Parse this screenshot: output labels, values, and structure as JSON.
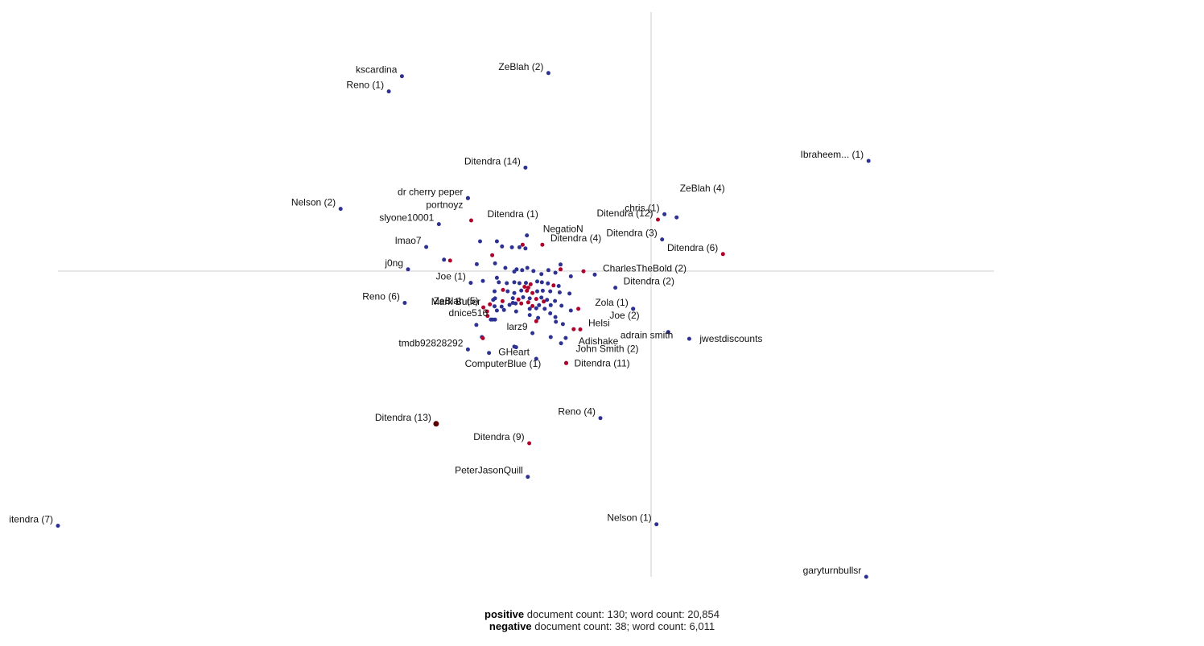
{
  "chart_data": {
    "type": "scatter",
    "title": "",
    "xlabel": "",
    "ylabel": "",
    "grid": false,
    "xlim": [
      -1,
      1
    ],
    "ylim": [
      -1,
      1
    ],
    "series_colors": {
      "positive": "#2e3192",
      "negative": "#b1002b",
      "highlight": "#5a0000"
    },
    "labeled_points": [
      {
        "label": "kscardina",
        "x": -0.265,
        "y": 0.773,
        "class": "positive",
        "anchor": "end"
      },
      {
        "label": "Reno (1)",
        "x": -0.293,
        "y": 0.719,
        "class": "positive",
        "anchor": "end"
      },
      {
        "label": "ZeBlah (2)",
        "x": 0.048,
        "y": 0.784,
        "class": "positive",
        "anchor": "end"
      },
      {
        "label": "Ibraheem... (1)",
        "x": 0.732,
        "y": 0.473,
        "class": "positive",
        "anchor": "end"
      },
      {
        "label": "Ditendra (14)",
        "x": -0.001,
        "y": 0.449,
        "class": "positive",
        "anchor": "end"
      },
      {
        "label": "dr cherry peper",
        "x": -0.124,
        "y": 0.341,
        "class": "positive",
        "anchor": "end"
      },
      {
        "label": "portnoyz",
        "x": -0.124,
        "y": 0.341,
        "class": "positive",
        "anchor": "end",
        "dy": 16
      },
      {
        "label": "Nelson (2)",
        "x": -0.396,
        "y": 0.303,
        "class": "positive",
        "anchor": "end"
      },
      {
        "label": "slyone10001",
        "x": -0.186,
        "y": 0.249,
        "class": "positive",
        "anchor": "end"
      },
      {
        "label": "Ditendra (1)",
        "x": -0.117,
        "y": 0.262,
        "class": "negative",
        "anchor": "start",
        "dx": 14
      },
      {
        "label": "NegatioN",
        "x": 0.002,
        "y": 0.209,
        "class": "positive",
        "anchor": "start",
        "dx": 14
      },
      {
        "label": "Ditendra (4)",
        "x": 0.035,
        "y": 0.176,
        "class": "negative",
        "anchor": "start",
        "dx": 4
      },
      {
        "label": "chris (1)",
        "x": 0.296,
        "y": 0.284,
        "class": "positive",
        "anchor": "end"
      },
      {
        "label": "ZeBlah (4)",
        "x": 0.322,
        "y": 0.273,
        "class": "positive",
        "anchor": "start",
        "dx": -2,
        "dy": -28
      },
      {
        "label": "Ditendra (12)",
        "x": 0.282,
        "y": 0.265,
        "class": "negative",
        "anchor": "end"
      },
      {
        "label": "Ditendra (3)",
        "x": 0.291,
        "y": 0.195,
        "class": "positive",
        "anchor": "end"
      },
      {
        "label": "Ditendra (6)",
        "x": 0.421,
        "y": 0.143,
        "class": "negative",
        "anchor": "end"
      },
      {
        "label": "lmao7",
        "x": -0.213,
        "y": 0.168,
        "class": "positive",
        "anchor": "end"
      },
      {
        "label": "j0ng",
        "x": -0.252,
        "y": 0.089,
        "class": "positive",
        "anchor": "end"
      },
      {
        "label": "CharlesTheBold (2)",
        "x": 0.147,
        "y": 0.07,
        "class": "positive",
        "anchor": "start",
        "dx": 4
      },
      {
        "label": "Joe (1)",
        "x": -0.118,
        "y": 0.041,
        "class": "positive",
        "anchor": "end"
      },
      {
        "label": "Ditendra (2)",
        "x": 0.191,
        "y": 0.024,
        "class": "positive",
        "anchor": "start",
        "dx": 4
      },
      {
        "label": "Reno (6)",
        "x": -0.259,
        "y": -0.03,
        "class": "positive",
        "anchor": "end"
      },
      {
        "label": "Mark Butler",
        "x": -0.066,
        "y": -0.014,
        "class": "positive",
        "anchor": "end",
        "dx": -12,
        "dy": 12
      },
      {
        "label": "ZeBlah (5)",
        "x": -0.091,
        "y": -0.046,
        "class": "negative",
        "anchor": "end"
      },
      {
        "label": "Zola (1)",
        "x": 0.229,
        "y": -0.051,
        "class": "positive",
        "anchor": "end"
      },
      {
        "label": "Joe (2)",
        "x": 0.229,
        "y": -0.051,
        "class": "positive",
        "anchor": "end",
        "dx": 14,
        "dy": 16
      },
      {
        "label": "dnice516",
        "x": -0.071,
        "y": -0.089,
        "class": "positive",
        "anchor": "end"
      },
      {
        "label": "Helsi",
        "x": 0.116,
        "y": -0.124,
        "class": "negative",
        "anchor": "start",
        "dx": 4
      },
      {
        "label": "larz9",
        "x": 0.014,
        "y": -0.137,
        "class": "positive",
        "anchor": "end"
      },
      {
        "label": "Adishake",
        "x": 0.085,
        "y": -0.154,
        "class": "positive",
        "anchor": "start",
        "dx": 10,
        "dy": 12
      },
      {
        "label": "adrain smith",
        "x": 0.304,
        "y": -0.133,
        "class": "positive",
        "anchor": "end",
        "dx": 12,
        "dy": 12
      },
      {
        "label": "jwestdiscounts",
        "x": 0.349,
        "y": -0.157,
        "class": "positive",
        "anchor": "start",
        "dx": 7,
        "dy": 8
      },
      {
        "label": "tmdb92828292",
        "x": -0.124,
        "y": -0.195,
        "class": "positive",
        "anchor": "end"
      },
      {
        "label": "GHeart",
        "x": -0.021,
        "y": -0.187,
        "class": "positive",
        "anchor": "start",
        "dx": -28,
        "dy": 14
      },
      {
        "label": "John Smith (2)",
        "x": 0.086,
        "y": -0.243,
        "class": "negative",
        "anchor": "start",
        "dx": 6,
        "dy": -10
      },
      {
        "label": "ComputerBlue (1)",
        "x": 0.022,
        "y": -0.228,
        "class": "positive",
        "anchor": "end",
        "dx": 12,
        "dy": 14
      },
      {
        "label": "Ditendra (11)",
        "x": 0.086,
        "y": -0.243,
        "class": "negative",
        "anchor": "start",
        "dx": 4,
        "dy": 8
      },
      {
        "label": "Ditendra (13)",
        "x": -0.192,
        "y": -0.458,
        "class": "highlight",
        "anchor": "end",
        "r": 3.5
      },
      {
        "label": "Reno (4)",
        "x": 0.159,
        "y": -0.438,
        "class": "positive",
        "anchor": "end"
      },
      {
        "label": "Ditendra (9)",
        "x": 0.007,
        "y": -0.527,
        "class": "negative",
        "anchor": "end"
      },
      {
        "label": "PeterJasonQuill",
        "x": 0.004,
        "y": -0.646,
        "class": "positive",
        "anchor": "end"
      },
      {
        "label": "itendra (7)",
        "x": -1.0,
        "y": -0.819,
        "class": "positive",
        "anchor": "end"
      },
      {
        "label": "Nelson (1)",
        "x": 0.279,
        "y": -0.814,
        "class": "positive",
        "anchor": "end"
      },
      {
        "label": "garyturnbullsr",
        "x": 0.727,
        "y": -1.0,
        "class": "positive",
        "anchor": "end"
      }
    ],
    "unlabeled_points": [
      {
        "x": -0.162,
        "y": 0.12,
        "class": "negative"
      },
      {
        "x": -0.175,
        "y": 0.123,
        "class": "positive"
      },
      {
        "x": -0.105,
        "y": 0.107,
        "class": "positive"
      },
      {
        "x": -0.066,
        "y": 0.11,
        "class": "positive"
      },
      {
        "x": -0.072,
        "y": 0.139,
        "class": "negative"
      },
      {
        "x": -0.062,
        "y": 0.188,
        "class": "positive"
      },
      {
        "x": -0.051,
        "y": 0.17,
        "class": "positive"
      },
      {
        "x": -0.03,
        "y": 0.167,
        "class": "positive"
      },
      {
        "x": -0.014,
        "y": 0.167,
        "class": "positive"
      },
      {
        "x": -0.007,
        "y": 0.176,
        "class": "negative"
      },
      {
        "x": -0.001,
        "y": 0.163,
        "class": "positive"
      },
      {
        "x": -0.098,
        "y": 0.188,
        "class": "positive"
      },
      {
        "x": -0.062,
        "y": 0.059,
        "class": "positive"
      },
      {
        "x": -0.044,
        "y": 0.094,
        "class": "positive"
      },
      {
        "x": -0.025,
        "y": 0.081,
        "class": "positive"
      },
      {
        "x": -0.02,
        "y": 0.089,
        "class": "positive"
      },
      {
        "x": -0.008,
        "y": 0.086,
        "class": "positive"
      },
      {
        "x": 0.003,
        "y": 0.094,
        "class": "positive"
      },
      {
        "x": 0.016,
        "y": 0.083,
        "class": "positive"
      },
      {
        "x": 0.033,
        "y": 0.072,
        "class": "positive"
      },
      {
        "x": 0.048,
        "y": 0.086,
        "class": "positive"
      },
      {
        "x": 0.063,
        "y": 0.077,
        "class": "positive"
      },
      {
        "x": 0.074,
        "y": 0.089,
        "class": "negative"
      },
      {
        "x": 0.074,
        "y": 0.106,
        "class": "positive"
      },
      {
        "x": 0.096,
        "y": 0.064,
        "class": "positive"
      },
      {
        "x": 0.123,
        "y": 0.082,
        "class": "negative"
      },
      {
        "x": -0.092,
        "y": 0.048,
        "class": "positive"
      },
      {
        "x": -0.058,
        "y": 0.043,
        "class": "positive"
      },
      {
        "x": -0.041,
        "y": 0.04,
        "class": "positive"
      },
      {
        "x": -0.025,
        "y": 0.043,
        "class": "positive"
      },
      {
        "x": -0.014,
        "y": 0.04,
        "class": "positive"
      },
      {
        "x": 0.0,
        "y": 0.041,
        "class": "positive"
      },
      {
        "x": 0.01,
        "y": 0.036,
        "class": "negative"
      },
      {
        "x": 0.024,
        "y": 0.046,
        "class": "positive"
      },
      {
        "x": 0.034,
        "y": 0.043,
        "class": "positive"
      },
      {
        "x": 0.047,
        "y": 0.039,
        "class": "positive"
      },
      {
        "x": 0.059,
        "y": 0.032,
        "class": "negative"
      },
      {
        "x": 0.07,
        "y": 0.03,
        "class": "positive"
      },
      {
        "x": -0.003,
        "y": 0.027,
        "class": "negative"
      },
      {
        "x": 0.005,
        "y": 0.024,
        "class": "negative"
      },
      {
        "x": -0.067,
        "y": 0.011,
        "class": "positive"
      },
      {
        "x": -0.049,
        "y": 0.016,
        "class": "negative"
      },
      {
        "x": -0.039,
        "y": 0.011,
        "class": "positive"
      },
      {
        "x": -0.025,
        "y": 0.005,
        "class": "positive"
      },
      {
        "x": -0.01,
        "y": 0.014,
        "class": "positive"
      },
      {
        "x": 0.002,
        "y": 0.013,
        "class": "negative"
      },
      {
        "x": 0.014,
        "y": 0.005,
        "class": "negative"
      },
      {
        "x": 0.024,
        "y": 0.011,
        "class": "positive"
      },
      {
        "x": 0.036,
        "y": 0.013,
        "class": "positive"
      },
      {
        "x": 0.052,
        "y": 0.011,
        "class": "positive"
      },
      {
        "x": 0.072,
        "y": 0.007,
        "class": "positive"
      },
      {
        "x": 0.093,
        "y": 0.003,
        "class": "positive"
      },
      {
        "x": -0.07,
        "y": -0.019,
        "class": "positive"
      },
      {
        "x": -0.05,
        "y": -0.024,
        "class": "negative"
      },
      {
        "x": -0.028,
        "y": -0.013,
        "class": "positive"
      },
      {
        "x": -0.016,
        "y": -0.018,
        "class": "negative"
      },
      {
        "x": -0.006,
        "y": -0.01,
        "class": "positive"
      },
      {
        "x": 0.008,
        "y": -0.014,
        "class": "positive"
      },
      {
        "x": 0.022,
        "y": -0.016,
        "class": "negative"
      },
      {
        "x": 0.033,
        "y": -0.011,
        "class": "positive"
      },
      {
        "x": 0.045,
        "y": -0.019,
        "class": "positive"
      },
      {
        "x": 0.062,
        "y": -0.023,
        "class": "positive"
      },
      {
        "x": -0.077,
        "y": -0.035,
        "class": "negative"
      },
      {
        "x": -0.067,
        "y": -0.042,
        "class": "positive"
      },
      {
        "x": -0.052,
        "y": -0.043,
        "class": "positive"
      },
      {
        "x": -0.035,
        "y": -0.037,
        "class": "positive"
      },
      {
        "x": -0.028,
        "y": -0.03,
        "class": "positive"
      },
      {
        "x": -0.022,
        "y": -0.032,
        "class": "positive"
      },
      {
        "x": -0.01,
        "y": -0.032,
        "class": "negative"
      },
      {
        "x": 0.005,
        "y": -0.028,
        "class": "negative"
      },
      {
        "x": 0.014,
        "y": -0.041,
        "class": "negative"
      },
      {
        "x": 0.028,
        "y": -0.038,
        "class": "positive"
      },
      {
        "x": 0.038,
        "y": -0.025,
        "class": "negative"
      },
      {
        "x": 0.053,
        "y": -0.038,
        "class": "positive"
      },
      {
        "x": 0.076,
        "y": -0.04,
        "class": "positive"
      },
      {
        "x": -0.083,
        "y": -0.06,
        "class": "negative"
      },
      {
        "x": -0.062,
        "y": -0.057,
        "class": "positive"
      },
      {
        "x": -0.047,
        "y": -0.055,
        "class": "positive"
      },
      {
        "x": -0.021,
        "y": -0.06,
        "class": "positive"
      },
      {
        "x": 0.008,
        "y": -0.051,
        "class": "positive"
      },
      {
        "x": 0.022,
        "y": -0.049,
        "class": "positive"
      },
      {
        "x": 0.04,
        "y": -0.051,
        "class": "positive"
      },
      {
        "x": 0.052,
        "y": -0.067,
        "class": "positive"
      },
      {
        "x": 0.096,
        "y": -0.057,
        "class": "positive"
      },
      {
        "x": 0.112,
        "y": -0.051,
        "class": "negative"
      },
      {
        "x": -0.082,
        "y": -0.076,
        "class": "negative"
      },
      {
        "x": -0.075,
        "y": -0.089,
        "class": "positive"
      },
      {
        "x": -0.066,
        "y": -0.089,
        "class": "positive"
      },
      {
        "x": 0.008,
        "y": -0.073,
        "class": "positive"
      },
      {
        "x": 0.026,
        "y": -0.083,
        "class": "positive"
      },
      {
        "x": 0.022,
        "y": -0.095,
        "class": "negative"
      },
      {
        "x": 0.063,
        "y": -0.08,
        "class": "positive"
      },
      {
        "x": 0.064,
        "y": -0.097,
        "class": "positive"
      },
      {
        "x": 0.079,
        "y": -0.105,
        "class": "positive"
      },
      {
        "x": 0.102,
        "y": -0.123,
        "class": "negative"
      },
      {
        "x": -0.106,
        "y": -0.108,
        "class": "positive"
      },
      {
        "x": -0.094,
        "y": -0.151,
        "class": "positive"
      },
      {
        "x": -0.092,
        "y": -0.155,
        "class": "negative"
      },
      {
        "x": 0.053,
        "y": -0.151,
        "class": "positive"
      },
      {
        "x": 0.075,
        "y": -0.173,
        "class": "positive"
      },
      {
        "x": -0.079,
        "y": -0.207,
        "class": "positive"
      },
      {
        "x": -0.025,
        "y": -0.185,
        "class": "positive"
      }
    ]
  },
  "footer": {
    "line1_bold": "positive",
    "line1_rest": " document count: 130; word count: 20,854",
    "line2_bold": "negative",
    "line2_rest": " document count: 38; word count: 6,011"
  }
}
